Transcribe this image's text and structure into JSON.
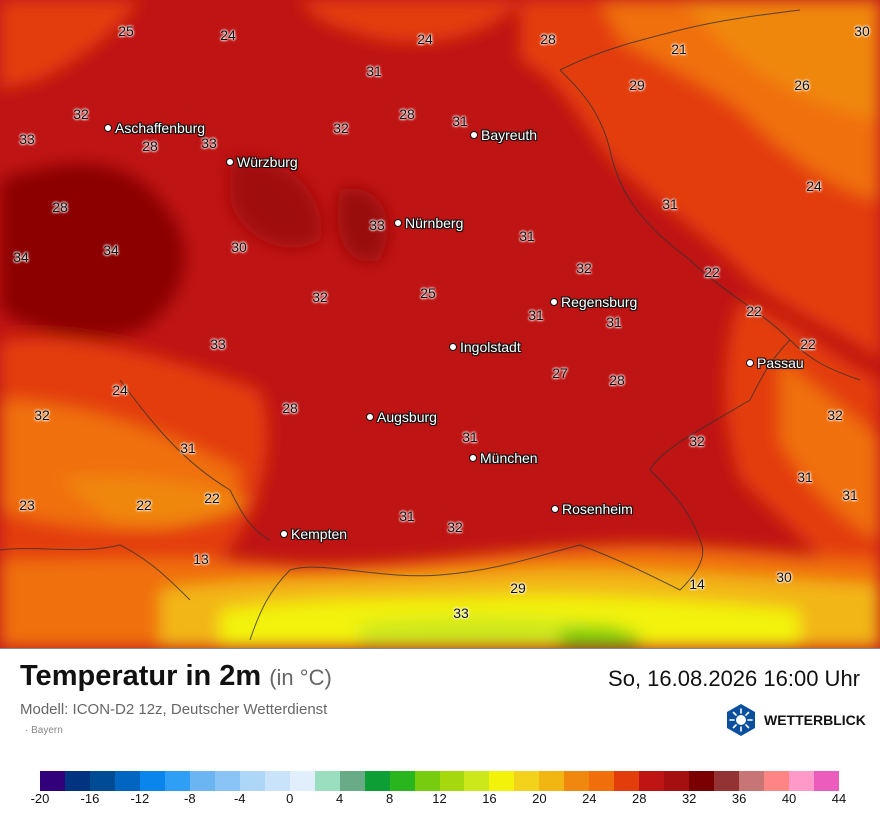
{
  "header": {
    "title": "Temperatur in 2m",
    "unit": "(in °C)",
    "datetime": "So, 16.08.2026 16:00 Uhr",
    "model": "Modell: ICON-D2 12z, Deutscher Wetterdienst",
    "region": "· Bayern",
    "logo_text": "WETTERBLICK",
    "logo_icon": "sun-snowflake-hexagon-icon"
  },
  "cities": [
    "Aschaffenburg",
    "Würzburg",
    "Bayreuth",
    "Nürnberg",
    "Regensburg",
    "Ingolstadt",
    "Passau",
    "Augsburg",
    "München",
    "Rosenheim",
    "Kempten"
  ],
  "temperatures": [
    "25",
    "24",
    "24",
    "28",
    "21",
    "29",
    "30",
    "31",
    "26",
    "32",
    "28",
    "31",
    "33",
    "32",
    "28",
    "33",
    "31",
    "24",
    "28",
    "33",
    "31",
    "34",
    "30",
    "34",
    "32",
    "25",
    "22",
    "32",
    "31",
    "22",
    "31",
    "33",
    "22",
    "27",
    "28",
    "24",
    "32",
    "28",
    "32",
    "31",
    "32",
    "31",
    "31",
    "23",
    "22",
    "22",
    "31",
    "31",
    "32",
    "13",
    "14",
    "30",
    "29",
    "33"
  ],
  "legend": {
    "tick_labels": [
      "-20",
      "-16",
      "-12",
      "-8",
      "-4",
      "0",
      "4",
      "8",
      "12",
      "16",
      "20",
      "24",
      "28",
      "32",
      "36",
      "40",
      "44"
    ],
    "colors": [
      "#32007a",
      "#003380",
      "#004c94",
      "#0066c2",
      "#0a85eb",
      "#2f9ef5",
      "#6bb6f2",
      "#8ac3f5",
      "#aed6f7",
      "#c9e3fa",
      "#e1eefc",
      "#99dfbf",
      "#68ab86",
      "#0d9e36",
      "#28b51e",
      "#78cc10",
      "#a5d90e",
      "#cde81a",
      "#f2f20a",
      "#f2d21b",
      "#f2b613",
      "#f0870e",
      "#f06f0c",
      "#e33d0b",
      "#bf1414",
      "#a60f0f",
      "#7a0000",
      "#943333",
      "#c77575",
      "#ff8585",
      "#ff99c7",
      "#eb5cbd"
    ]
  }
}
